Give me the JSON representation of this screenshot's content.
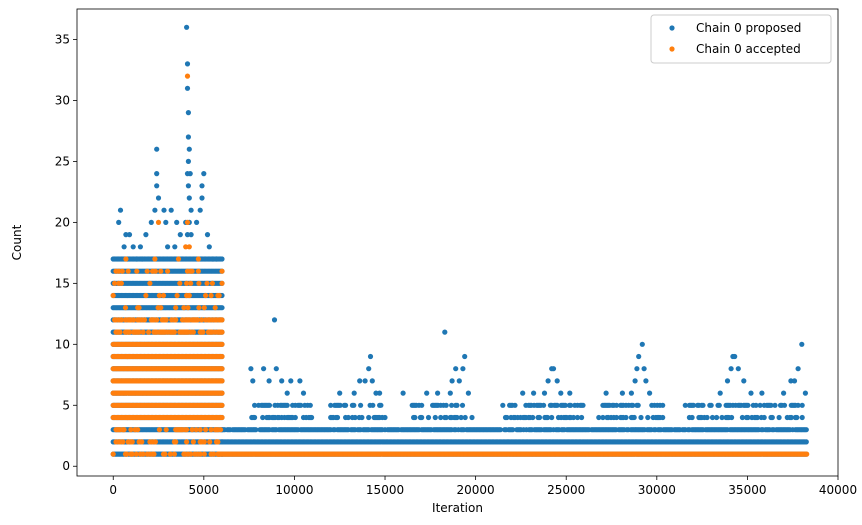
{
  "chart_data": {
    "type": "scatter",
    "title": "",
    "xlabel": "Iteration",
    "ylabel": "Count",
    "xlim": [
      -2000,
      40000
    ],
    "ylim": [
      -0.8,
      37.5
    ],
    "xticks": [
      0,
      5000,
      10000,
      15000,
      20000,
      25000,
      30000,
      35000,
      40000
    ],
    "yticks": [
      0,
      5,
      10,
      15,
      20,
      25,
      30,
      35
    ],
    "grid": false,
    "legend_position": "top-right",
    "colors": {
      "proposed": "#1f77b4",
      "accepted": "#ff7f0e"
    },
    "series": [
      {
        "name": "Chain 0 proposed",
        "color": "#1f77b4",
        "bands": [
          {
            "x_range": [
              0,
              6000
            ],
            "y_values": [
              1,
              2,
              3,
              4,
              5,
              6,
              7,
              8,
              9,
              10,
              11,
              12,
              13,
              14,
              15,
              16,
              17
            ]
          },
          {
            "x_range": [
              6000,
              38300
            ],
            "y_values": [
              1,
              2
            ]
          },
          {
            "x_range": [
              6000,
              38300
            ],
            "y_values": [
              3
            ],
            "density": 0.85
          },
          {
            "x_range": [
              7500,
              11000
            ],
            "y_values": [
              4,
              5
            ],
            "density": 0.5
          },
          {
            "x_range": [
              12000,
              15000
            ],
            "y_values": [
              4,
              5
            ],
            "density": 0.45
          },
          {
            "x_range": [
              16500,
              19800
            ],
            "y_values": [
              4,
              5
            ],
            "density": 0.45
          },
          {
            "x_range": [
              21500,
              26000
            ],
            "y_values": [
              4,
              5
            ],
            "density": 0.45
          },
          {
            "x_range": [
              26800,
              30400
            ],
            "y_values": [
              4,
              5
            ],
            "density": 0.45
          },
          {
            "x_range": [
              31500,
              38300
            ],
            "y_values": [
              4,
              5
            ],
            "density": 0.45
          }
        ],
        "points": [
          [
            400,
            21
          ],
          [
            300,
            20
          ],
          [
            700,
            19
          ],
          [
            600,
            18
          ],
          [
            1100,
            18
          ],
          [
            1500,
            18
          ],
          [
            1800,
            19
          ],
          [
            2100,
            20
          ],
          [
            2300,
            21
          ],
          [
            2400,
            26
          ],
          [
            2400,
            24
          ],
          [
            2400,
            23
          ],
          [
            2500,
            22
          ],
          [
            2800,
            21
          ],
          [
            2900,
            20
          ],
          [
            3200,
            21
          ],
          [
            3500,
            20
          ],
          [
            3700,
            19
          ],
          [
            4050,
            36
          ],
          [
            4100,
            33
          ],
          [
            4100,
            31
          ],
          [
            4150,
            29
          ],
          [
            4150,
            27
          ],
          [
            4200,
            26
          ],
          [
            4150,
            25
          ],
          [
            4100,
            24
          ],
          [
            4250,
            24
          ],
          [
            4150,
            23
          ],
          [
            4200,
            22
          ],
          [
            4300,
            21
          ],
          [
            4200,
            20
          ],
          [
            4000,
            20
          ],
          [
            4100,
            19
          ],
          [
            4300,
            19
          ],
          [
            4600,
            20
          ],
          [
            4800,
            21
          ],
          [
            4900,
            23
          ],
          [
            5000,
            24
          ],
          [
            4900,
            22
          ],
          [
            5200,
            19
          ],
          [
            5300,
            18
          ],
          [
            5500,
            17
          ],
          [
            5700,
            17
          ],
          [
            900,
            19
          ],
          [
            1300,
            17
          ],
          [
            1600,
            17
          ],
          [
            3000,
            18
          ],
          [
            3400,
            18
          ],
          [
            7600,
            8
          ],
          [
            7700,
            7
          ],
          [
            8300,
            8
          ],
          [
            8600,
            7
          ],
          [
            8900,
            12
          ],
          [
            9000,
            8
          ],
          [
            9300,
            7
          ],
          [
            9600,
            6
          ],
          [
            9800,
            7
          ],
          [
            10300,
            7
          ],
          [
            10500,
            6
          ],
          [
            12500,
            6
          ],
          [
            13300,
            6
          ],
          [
            13600,
            7
          ],
          [
            13900,
            7
          ],
          [
            14100,
            8
          ],
          [
            14200,
            9
          ],
          [
            14300,
            7
          ],
          [
            14500,
            6
          ],
          [
            14700,
            6
          ],
          [
            16000,
            6
          ],
          [
            17300,
            6
          ],
          [
            17900,
            6
          ],
          [
            18300,
            11
          ],
          [
            18600,
            6
          ],
          [
            18700,
            7
          ],
          [
            18900,
            8
          ],
          [
            19100,
            7
          ],
          [
            19300,
            8
          ],
          [
            19400,
            9
          ],
          [
            19600,
            6
          ],
          [
            22600,
            6
          ],
          [
            23200,
            6
          ],
          [
            23800,
            6
          ],
          [
            24000,
            7
          ],
          [
            24200,
            8
          ],
          [
            24300,
            8
          ],
          [
            24500,
            7
          ],
          [
            24700,
            6
          ],
          [
            25200,
            6
          ],
          [
            27200,
            6
          ],
          [
            28100,
            6
          ],
          [
            28600,
            6
          ],
          [
            28800,
            7
          ],
          [
            28900,
            8
          ],
          [
            29000,
            9
          ],
          [
            29200,
            10
          ],
          [
            29300,
            8
          ],
          [
            29400,
            7
          ],
          [
            29600,
            6
          ],
          [
            33500,
            6
          ],
          [
            33900,
            7
          ],
          [
            34100,
            8
          ],
          [
            34200,
            9
          ],
          [
            34300,
            9
          ],
          [
            34500,
            8
          ],
          [
            34800,
            7
          ],
          [
            35200,
            6
          ],
          [
            35800,
            6
          ],
          [
            37000,
            6
          ],
          [
            37400,
            7
          ],
          [
            37600,
            7
          ],
          [
            37800,
            8
          ],
          [
            38000,
            10
          ],
          [
            38200,
            6
          ]
        ]
      },
      {
        "name": "Chain 0 accepted",
        "color": "#ff7f0e",
        "bands": [
          {
            "x_range": [
              0,
              6000
            ],
            "y_values": [
              4,
              5,
              6,
              7,
              8,
              9,
              10
            ]
          },
          {
            "x_range": [
              0,
              6000
            ],
            "y_values": [
              11,
              12
            ],
            "density": 0.55
          },
          {
            "x_range": [
              0,
              6000
            ],
            "y_values": [
              1,
              2,
              3
            ],
            "density": 0.35
          },
          {
            "x_range": [
              0,
              6000
            ],
            "y_values": [
              13,
              14,
              15,
              16
            ],
            "density": 0.12
          },
          {
            "x_range": [
              5800,
              38300
            ],
            "y_values": [
              1
            ]
          }
        ],
        "points": [
          [
            4100,
            32
          ],
          [
            4100,
            20
          ],
          [
            2500,
            20
          ],
          [
            4000,
            18
          ],
          [
            4200,
            18
          ],
          [
            700,
            17
          ],
          [
            2300,
            17
          ],
          [
            3600,
            17
          ],
          [
            4700,
            17
          ],
          [
            4100,
            16
          ],
          [
            4700,
            16
          ],
          [
            3000,
            16
          ],
          [
            1300,
            16
          ],
          [
            500,
            16
          ]
        ]
      }
    ]
  }
}
